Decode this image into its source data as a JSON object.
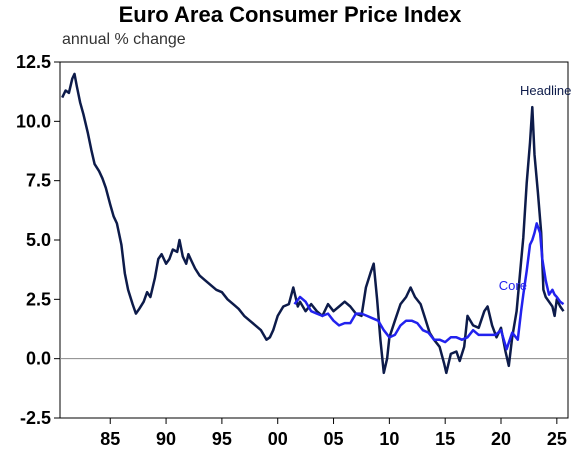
{
  "chart_data": {
    "type": "line",
    "title": "Euro Area Consumer Price Index",
    "subtitle": "annual % change",
    "xlabel": "",
    "ylabel": "",
    "xlim": [
      1980.5,
      2026.0
    ],
    "ylim": [
      -2.5,
      12.5
    ],
    "x_ticks": [
      {
        "value": 1985,
        "label": "85"
      },
      {
        "value": 1990,
        "label": "90"
      },
      {
        "value": 1995,
        "label": "95"
      },
      {
        "value": 2000,
        "label": "00"
      },
      {
        "value": 2005,
        "label": "05"
      },
      {
        "value": 2010,
        "label": "10"
      },
      {
        "value": 2015,
        "label": "15"
      },
      {
        "value": 2020,
        "label": "20"
      },
      {
        "value": 2025,
        "label": "25"
      }
    ],
    "y_ticks": [
      {
        "value": 12.5,
        "label": "12.5"
      },
      {
        "value": 10.0,
        "label": "10.0"
      },
      {
        "value": 7.5,
        "label": "7.5"
      },
      {
        "value": 5.0,
        "label": "5.0"
      },
      {
        "value": 2.5,
        "label": "2.5"
      },
      {
        "value": 0.0,
        "label": "0.0"
      },
      {
        "value": -2.5,
        "label": "-2.5"
      }
    ],
    "zero_line": true,
    "grid": false,
    "series": [
      {
        "name": "Headline",
        "color": "#0d1b4a",
        "points": [
          [
            1980.7,
            11.0
          ],
          [
            1981.0,
            11.3
          ],
          [
            1981.3,
            11.2
          ],
          [
            1981.6,
            11.8
          ],
          [
            1981.8,
            12.0
          ],
          [
            1982.0,
            11.5
          ],
          [
            1982.3,
            10.8
          ],
          [
            1982.6,
            10.3
          ],
          [
            1983.0,
            9.5
          ],
          [
            1983.3,
            8.8
          ],
          [
            1983.6,
            8.2
          ],
          [
            1984.0,
            7.9
          ],
          [
            1984.3,
            7.6
          ],
          [
            1984.6,
            7.2
          ],
          [
            1985.0,
            6.5
          ],
          [
            1985.3,
            6.0
          ],
          [
            1985.6,
            5.7
          ],
          [
            1986.0,
            4.8
          ],
          [
            1986.3,
            3.6
          ],
          [
            1986.6,
            2.9
          ],
          [
            1987.0,
            2.3
          ],
          [
            1987.3,
            1.9
          ],
          [
            1987.6,
            2.1
          ],
          [
            1988.0,
            2.4
          ],
          [
            1988.3,
            2.8
          ],
          [
            1988.6,
            2.6
          ],
          [
            1989.0,
            3.4
          ],
          [
            1989.3,
            4.2
          ],
          [
            1989.6,
            4.4
          ],
          [
            1990.0,
            4.0
          ],
          [
            1990.3,
            4.2
          ],
          [
            1990.6,
            4.6
          ],
          [
            1991.0,
            4.5
          ],
          [
            1991.2,
            5.0
          ],
          [
            1991.5,
            4.3
          ],
          [
            1991.8,
            4.0
          ],
          [
            1992.0,
            4.4
          ],
          [
            1992.3,
            4.1
          ],
          [
            1992.6,
            3.8
          ],
          [
            1993.0,
            3.5
          ],
          [
            1993.5,
            3.3
          ],
          [
            1994.0,
            3.1
          ],
          [
            1994.5,
            2.9
          ],
          [
            1995.0,
            2.8
          ],
          [
            1995.5,
            2.5
          ],
          [
            1996.0,
            2.3
          ],
          [
            1996.5,
            2.1
          ],
          [
            1997.0,
            1.8
          ],
          [
            1997.5,
            1.6
          ],
          [
            1998.0,
            1.4
          ],
          [
            1998.5,
            1.2
          ],
          [
            1999.0,
            0.8
          ],
          [
            1999.3,
            0.9
          ],
          [
            1999.6,
            1.2
          ],
          [
            2000.0,
            1.8
          ],
          [
            2000.5,
            2.2
          ],
          [
            2001.0,
            2.3
          ],
          [
            2001.4,
            3.0
          ],
          [
            2001.8,
            2.2
          ],
          [
            2002.0,
            2.4
          ],
          [
            2002.5,
            2.0
          ],
          [
            2003.0,
            2.3
          ],
          [
            2003.5,
            2.0
          ],
          [
            2004.0,
            1.8
          ],
          [
            2004.5,
            2.3
          ],
          [
            2005.0,
            2.0
          ],
          [
            2005.5,
            2.2
          ],
          [
            2006.0,
            2.4
          ],
          [
            2006.5,
            2.2
          ],
          [
            2007.0,
            1.9
          ],
          [
            2007.5,
            1.8
          ],
          [
            2007.9,
            3.0
          ],
          [
            2008.3,
            3.6
          ],
          [
            2008.6,
            4.0
          ],
          [
            2008.9,
            2.5
          ],
          [
            2009.2,
            0.8
          ],
          [
            2009.5,
            -0.6
          ],
          [
            2009.8,
            0.0
          ],
          [
            2010.0,
            0.9
          ],
          [
            2010.5,
            1.6
          ],
          [
            2011.0,
            2.3
          ],
          [
            2011.5,
            2.6
          ],
          [
            2011.9,
            3.0
          ],
          [
            2012.3,
            2.6
          ],
          [
            2012.8,
            2.3
          ],
          [
            2013.2,
            1.7
          ],
          [
            2013.6,
            1.1
          ],
          [
            2014.0,
            0.8
          ],
          [
            2014.5,
            0.5
          ],
          [
            2014.9,
            -0.2
          ],
          [
            2015.1,
            -0.6
          ],
          [
            2015.5,
            0.2
          ],
          [
            2016.0,
            0.3
          ],
          [
            2016.3,
            -0.1
          ],
          [
            2016.7,
            0.5
          ],
          [
            2017.0,
            1.8
          ],
          [
            2017.5,
            1.4
          ],
          [
            2018.0,
            1.3
          ],
          [
            2018.5,
            2.0
          ],
          [
            2018.8,
            2.2
          ],
          [
            2019.2,
            1.4
          ],
          [
            2019.6,
            0.9
          ],
          [
            2020.0,
            1.3
          ],
          [
            2020.4,
            0.3
          ],
          [
            2020.7,
            -0.3
          ],
          [
            2021.0,
            0.9
          ],
          [
            2021.4,
            2.0
          ],
          [
            2021.8,
            4.1
          ],
          [
            2022.0,
            5.1
          ],
          [
            2022.3,
            7.4
          ],
          [
            2022.6,
            9.1
          ],
          [
            2022.8,
            10.6
          ],
          [
            2023.0,
            8.6
          ],
          [
            2023.3,
            7.0
          ],
          [
            2023.6,
            5.3
          ],
          [
            2023.8,
            2.9
          ],
          [
            2024.0,
            2.6
          ],
          [
            2024.3,
            2.4
          ],
          [
            2024.6,
            2.2
          ],
          [
            2024.8,
            1.8
          ],
          [
            2025.0,
            2.5
          ],
          [
            2025.3,
            2.2
          ],
          [
            2025.6,
            2.0
          ]
        ]
      },
      {
        "name": "Core",
        "color": "#2222ee",
        "points": [
          [
            2001.5,
            2.3
          ],
          [
            2002.0,
            2.6
          ],
          [
            2002.5,
            2.4
          ],
          [
            2003.0,
            2.0
          ],
          [
            2003.5,
            1.9
          ],
          [
            2004.0,
            1.8
          ],
          [
            2004.5,
            1.9
          ],
          [
            2005.0,
            1.6
          ],
          [
            2005.5,
            1.4
          ],
          [
            2006.0,
            1.5
          ],
          [
            2006.5,
            1.5
          ],
          [
            2007.0,
            1.9
          ],
          [
            2007.5,
            1.9
          ],
          [
            2008.0,
            1.8
          ],
          [
            2008.5,
            1.7
          ],
          [
            2009.0,
            1.6
          ],
          [
            2009.5,
            1.2
          ],
          [
            2010.0,
            0.9
          ],
          [
            2010.5,
            1.0
          ],
          [
            2011.0,
            1.4
          ],
          [
            2011.5,
            1.6
          ],
          [
            2012.0,
            1.6
          ],
          [
            2012.5,
            1.5
          ],
          [
            2013.0,
            1.2
          ],
          [
            2013.5,
            1.1
          ],
          [
            2014.0,
            0.8
          ],
          [
            2014.5,
            0.8
          ],
          [
            2015.0,
            0.7
          ],
          [
            2015.5,
            0.9
          ],
          [
            2016.0,
            0.9
          ],
          [
            2016.5,
            0.8
          ],
          [
            2017.0,
            0.9
          ],
          [
            2017.5,
            1.2
          ],
          [
            2018.0,
            1.0
          ],
          [
            2018.5,
            1.0
          ],
          [
            2019.0,
            1.0
          ],
          [
            2019.5,
            1.0
          ],
          [
            2020.0,
            1.2
          ],
          [
            2020.5,
            0.4
          ],
          [
            2021.0,
            1.1
          ],
          [
            2021.5,
            0.8
          ],
          [
            2021.8,
            2.0
          ],
          [
            2022.0,
            2.7
          ],
          [
            2022.3,
            3.7
          ],
          [
            2022.6,
            4.8
          ],
          [
            2022.8,
            5.0
          ],
          [
            2023.0,
            5.3
          ],
          [
            2023.2,
            5.7
          ],
          [
            2023.5,
            5.3
          ],
          [
            2023.7,
            4.2
          ],
          [
            2024.0,
            3.3
          ],
          [
            2024.3,
            2.7
          ],
          [
            2024.6,
            2.9
          ],
          [
            2024.8,
            2.7
          ],
          [
            2025.0,
            2.6
          ],
          [
            2025.3,
            2.4
          ],
          [
            2025.6,
            2.3
          ]
        ]
      }
    ],
    "annotations": [
      {
        "text": "Headline",
        "series": "Headline",
        "color": "#0d1b4a",
        "x": 2021.7,
        "y": 11.1
      },
      {
        "text": "Core",
        "series": "Core",
        "color": "#2222ee",
        "x": 2019.8,
        "y": 2.9
      }
    ]
  }
}
